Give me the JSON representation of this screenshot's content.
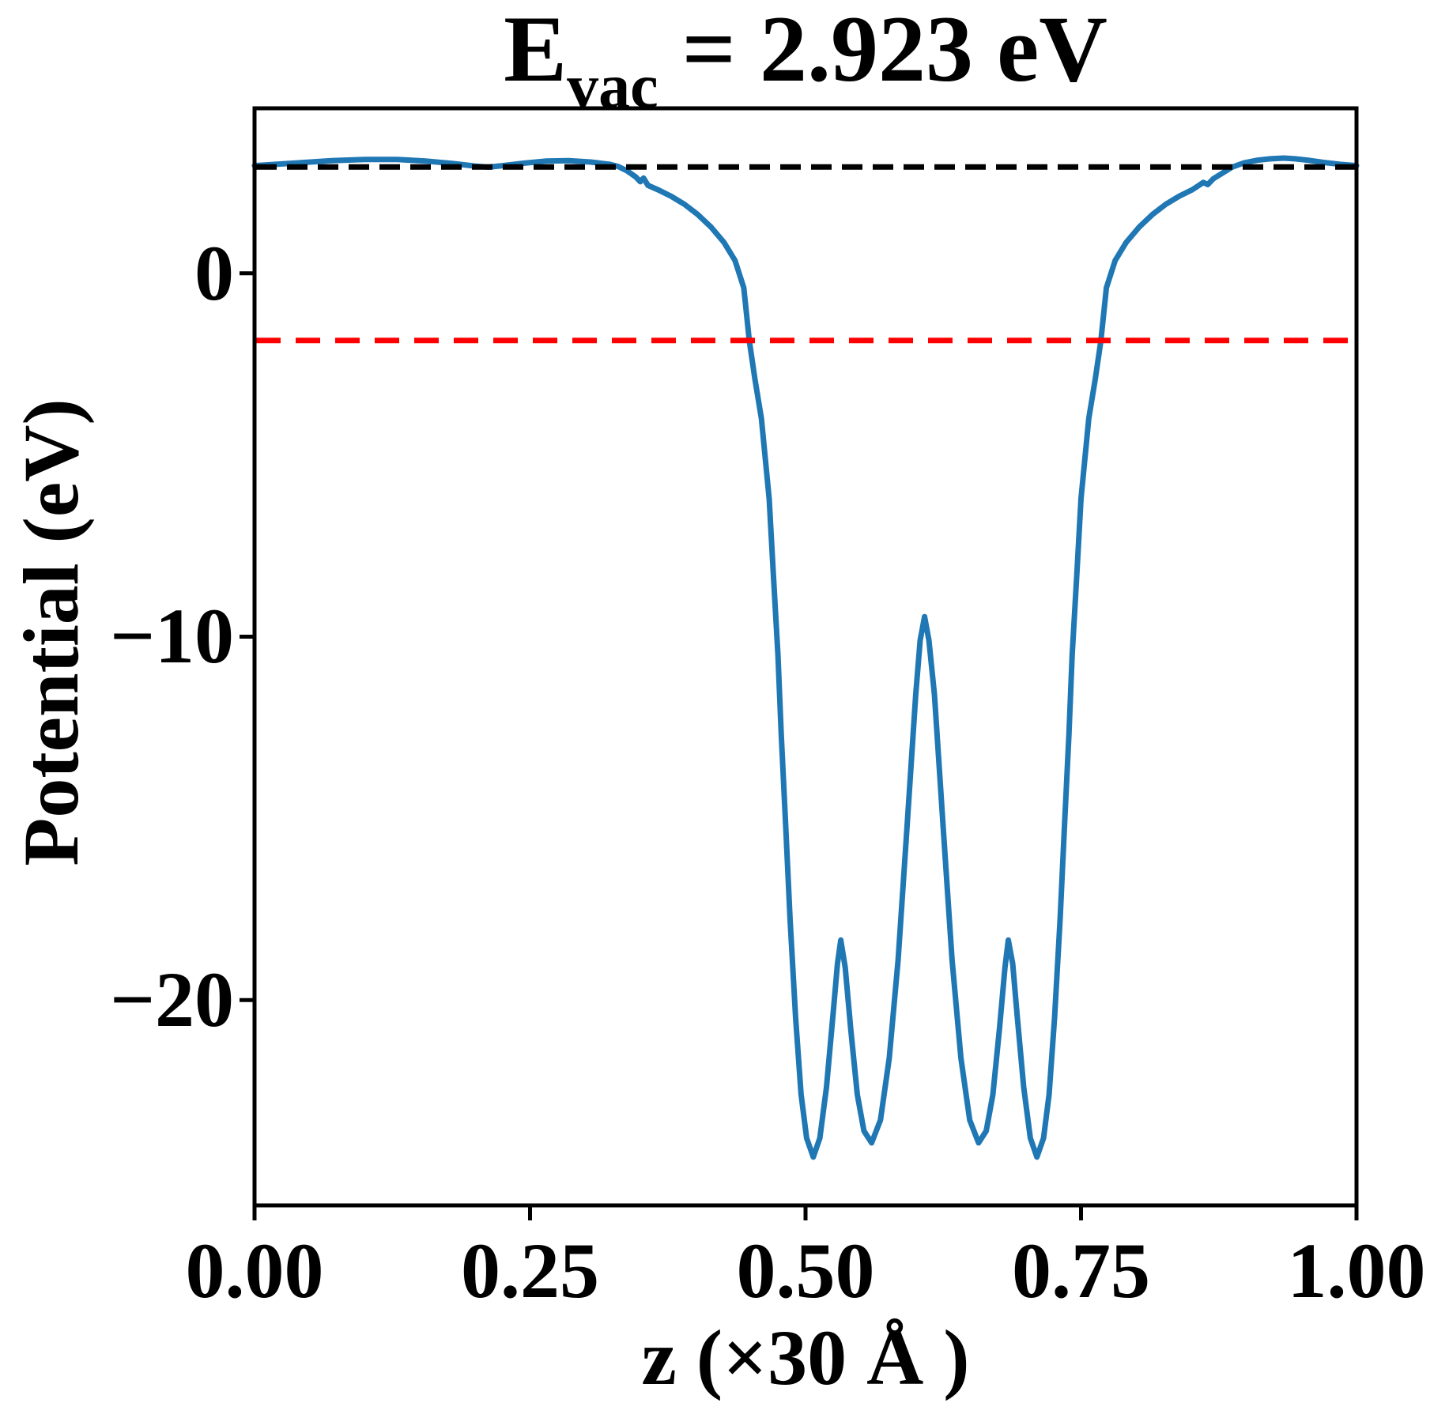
{
  "chart_data": {
    "type": "line",
    "title": {
      "prefix": "E",
      "subscript": "vac",
      "suffix": " = 2.923 eV",
      "full_text": "E_vac = 2.923 eV"
    },
    "xlabel": "z (×30 Å )",
    "ylabel": "Potential (eV)",
    "xlim": [
      0.0,
      1.0
    ],
    "ylim": [
      -25.65,
      4.54
    ],
    "grid": false,
    "legend": "none",
    "x_ticks": [
      {
        "v": 0.0,
        "label": "0.00"
      },
      {
        "v": 0.25,
        "label": "0.25"
      },
      {
        "v": 0.5,
        "label": "0.50"
      },
      {
        "v": 0.75,
        "label": "0.75"
      },
      {
        "v": 1.0,
        "label": "1.00"
      }
    ],
    "y_ticks": [
      {
        "v": 0,
        "label": "0"
      },
      {
        "v": -10,
        "label": "−10"
      },
      {
        "v": -20,
        "label": "−20"
      }
    ],
    "series": [
      {
        "name": "planar-averaged-potential",
        "kind": "curve",
        "color": "#1f77b4",
        "line_width": 7,
        "dash": null,
        "points": [
          [
            0.0,
            2.96
          ],
          [
            0.015,
            2.99
          ],
          [
            0.04,
            3.04
          ],
          [
            0.07,
            3.1
          ],
          [
            0.1,
            3.13
          ],
          [
            0.13,
            3.13
          ],
          [
            0.155,
            3.09
          ],
          [
            0.18,
            3.02
          ],
          [
            0.2,
            2.95
          ],
          [
            0.212,
            2.92
          ],
          [
            0.225,
            2.96
          ],
          [
            0.245,
            3.03
          ],
          [
            0.265,
            3.09
          ],
          [
            0.285,
            3.1
          ],
          [
            0.305,
            3.06
          ],
          [
            0.322,
            3.0
          ],
          [
            0.33,
            2.94
          ],
          [
            0.338,
            2.82
          ],
          [
            0.346,
            2.65
          ],
          [
            0.35,
            2.52
          ],
          [
            0.353,
            2.62
          ],
          [
            0.357,
            2.42
          ],
          [
            0.366,
            2.3
          ],
          [
            0.378,
            2.12
          ],
          [
            0.39,
            1.9
          ],
          [
            0.402,
            1.62
          ],
          [
            0.414,
            1.28
          ],
          [
            0.426,
            0.85
          ],
          [
            0.436,
            0.35
          ],
          [
            0.444,
            -0.4
          ],
          [
            0.449,
            -1.86
          ],
          [
            0.454,
            -2.9
          ],
          [
            0.46,
            -4.0
          ],
          [
            0.467,
            -6.2
          ],
          [
            0.471,
            -8.4
          ],
          [
            0.475,
            -10.5
          ],
          [
            0.478,
            -12.7
          ],
          [
            0.482,
            -15.2
          ],
          [
            0.486,
            -17.8
          ],
          [
            0.491,
            -20.5
          ],
          [
            0.496,
            -22.6
          ],
          [
            0.501,
            -23.8
          ],
          [
            0.507,
            -24.32
          ],
          [
            0.513,
            -23.8
          ],
          [
            0.519,
            -22.4
          ],
          [
            0.525,
            -20.4
          ],
          [
            0.529,
            -19.0
          ],
          [
            0.532,
            -18.35
          ],
          [
            0.536,
            -19.1
          ],
          [
            0.541,
            -20.8
          ],
          [
            0.547,
            -22.6
          ],
          [
            0.553,
            -23.6
          ],
          [
            0.56,
            -23.93
          ],
          [
            0.568,
            -23.3
          ],
          [
            0.576,
            -21.6
          ],
          [
            0.584,
            -18.9
          ],
          [
            0.592,
            -15.3
          ],
          [
            0.6,
            -11.6
          ],
          [
            0.604,
            -10.1
          ],
          [
            0.608,
            -9.45
          ],
          [
            0.612,
            -10.1
          ],
          [
            0.617,
            -11.6
          ],
          [
            0.625,
            -15.3
          ],
          [
            0.633,
            -18.9
          ],
          [
            0.641,
            -21.6
          ],
          [
            0.649,
            -23.3
          ],
          [
            0.657,
            -23.93
          ],
          [
            0.664,
            -23.6
          ],
          [
            0.67,
            -22.6
          ],
          [
            0.676,
            -20.8
          ],
          [
            0.681,
            -19.1
          ],
          [
            0.684,
            -18.35
          ],
          [
            0.688,
            -19.0
          ],
          [
            0.692,
            -20.4
          ],
          [
            0.698,
            -22.4
          ],
          [
            0.704,
            -23.8
          ],
          [
            0.71,
            -24.32
          ],
          [
            0.716,
            -23.8
          ],
          [
            0.721,
            -22.6
          ],
          [
            0.726,
            -20.5
          ],
          [
            0.731,
            -17.8
          ],
          [
            0.735,
            -15.2
          ],
          [
            0.739,
            -12.7
          ],
          [
            0.742,
            -10.5
          ],
          [
            0.746,
            -8.4
          ],
          [
            0.75,
            -6.2
          ],
          [
            0.757,
            -4.0
          ],
          [
            0.763,
            -2.9
          ],
          [
            0.768,
            -1.86
          ],
          [
            0.773,
            -0.4
          ],
          [
            0.781,
            0.35
          ],
          [
            0.791,
            0.85
          ],
          [
            0.803,
            1.28
          ],
          [
            0.815,
            1.62
          ],
          [
            0.827,
            1.9
          ],
          [
            0.839,
            2.12
          ],
          [
            0.851,
            2.3
          ],
          [
            0.857,
            2.42
          ],
          [
            0.861,
            2.5
          ],
          [
            0.865,
            2.44
          ],
          [
            0.87,
            2.6
          ],
          [
            0.878,
            2.75
          ],
          [
            0.887,
            2.92
          ],
          [
            0.898,
            3.04
          ],
          [
            0.91,
            3.11
          ],
          [
            0.922,
            3.15
          ],
          [
            0.934,
            3.17
          ],
          [
            0.944,
            3.15
          ],
          [
            0.956,
            3.11
          ],
          [
            0.97,
            3.05
          ],
          [
            0.985,
            3.0
          ],
          [
            1.0,
            2.96
          ]
        ]
      },
      {
        "name": "vacuum-level-line",
        "kind": "hline",
        "color": "#000000",
        "line_width": 7,
        "dash": [
          26,
          13
        ],
        "y": 2.923
      },
      {
        "name": "fermi-level-line",
        "kind": "hline",
        "color": "#ff0000",
        "line_width": 7,
        "dash": [
          31,
          19
        ],
        "y": -1.85
      }
    ],
    "axis_color": "#000000"
  }
}
